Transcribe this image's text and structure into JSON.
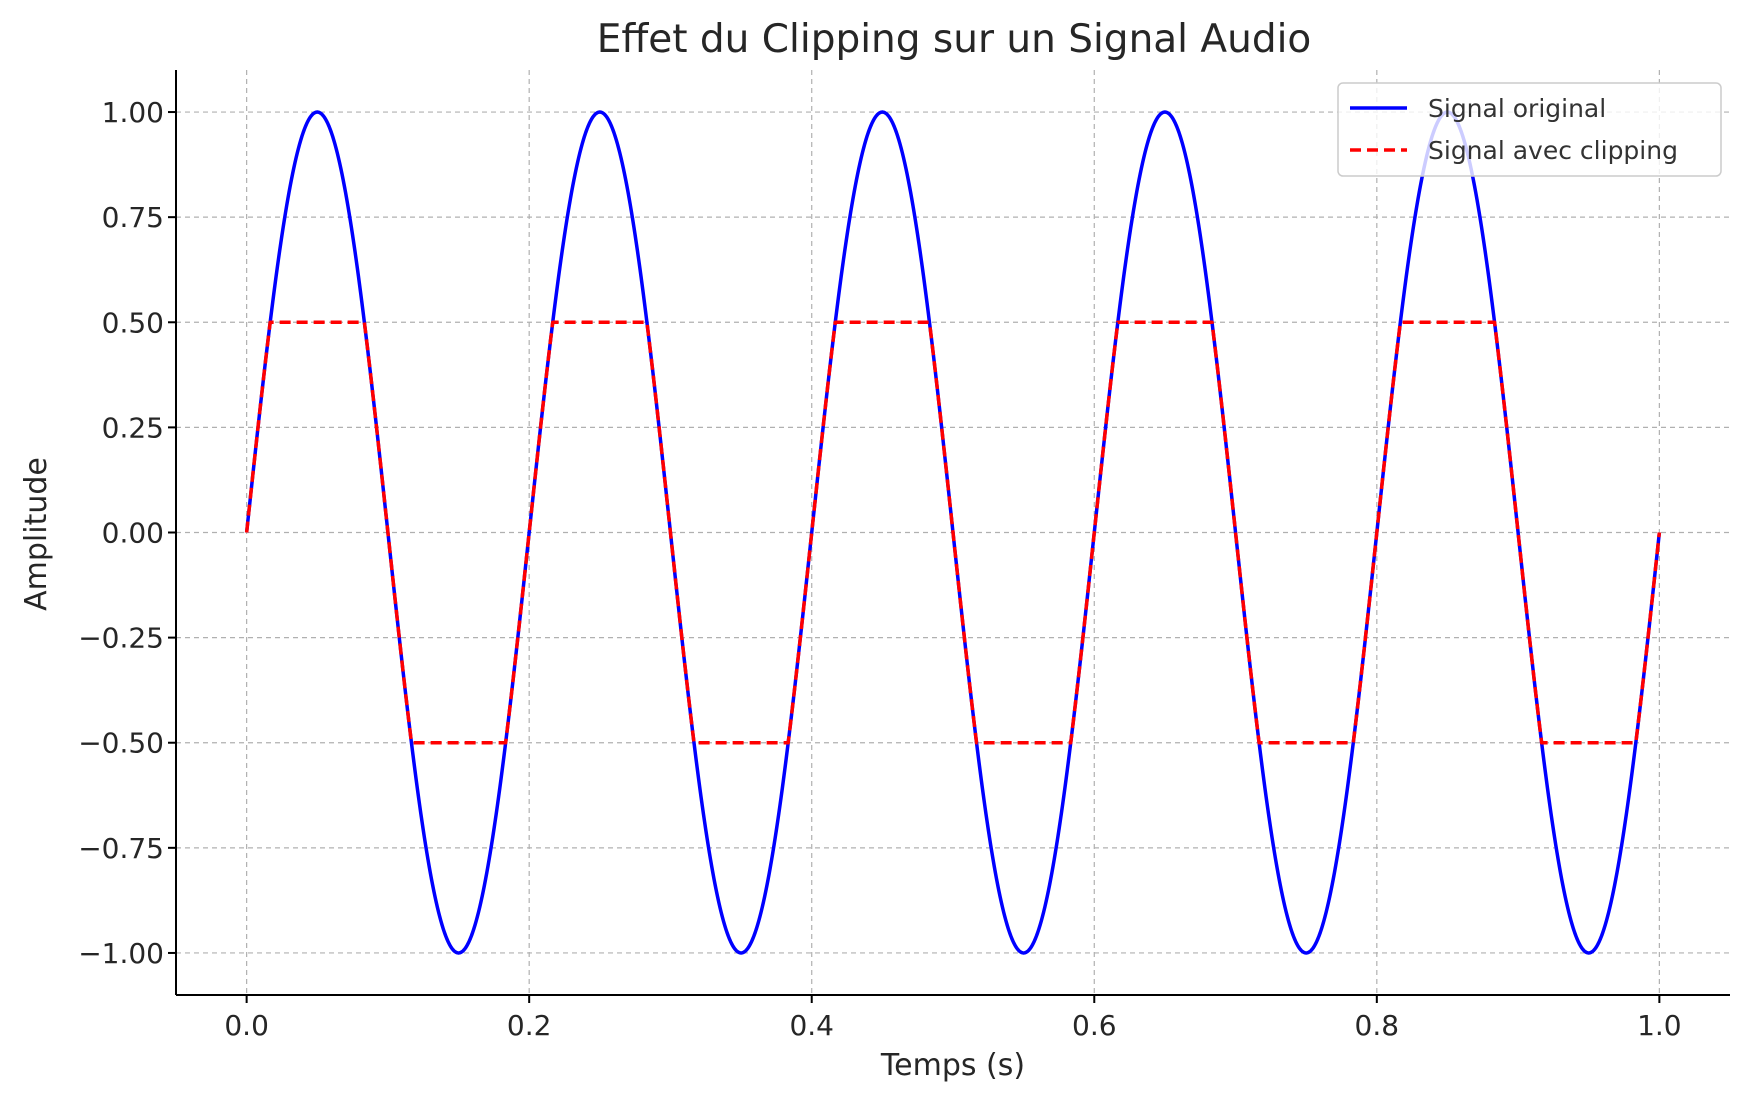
{
  "chart_data": {
    "type": "line",
    "title": "Effet du Clipping sur un Signal Audio",
    "xlabel": "Temps (s)",
    "ylabel": "Amplitude",
    "xlim": [
      -0.05,
      1.05
    ],
    "ylim": [
      -1.1,
      1.1
    ],
    "x_ticks": [
      0.0,
      0.2,
      0.4,
      0.6,
      0.8,
      1.0
    ],
    "x_tick_labels": [
      "0.0",
      "0.2",
      "0.4",
      "0.6",
      "0.8",
      "1.0"
    ],
    "y_ticks": [
      1.0,
      0.75,
      0.5,
      0.25,
      0.0,
      -0.25,
      -0.5,
      -0.75,
      -1.0
    ],
    "y_tick_labels": [
      "1.00",
      "0.75",
      "0.50",
      "0.25",
      "0.00",
      "−0.25",
      "−0.50",
      "−0.75",
      "−1.00"
    ],
    "grid": true,
    "legend_position": "top-right",
    "series": [
      {
        "name": "Signal original",
        "color": "#0000ff",
        "style": "solid",
        "function": "sin(2*pi*5*t)",
        "x_range": [
          0.0,
          1.0
        ]
      },
      {
        "name": "Signal avec clipping",
        "color": "#ff0000",
        "style": "dashed",
        "function": "clip(sin(2*pi*5*t), -0.5, 0.5)",
        "x_range": [
          0.0,
          1.0
        ]
      }
    ]
  }
}
